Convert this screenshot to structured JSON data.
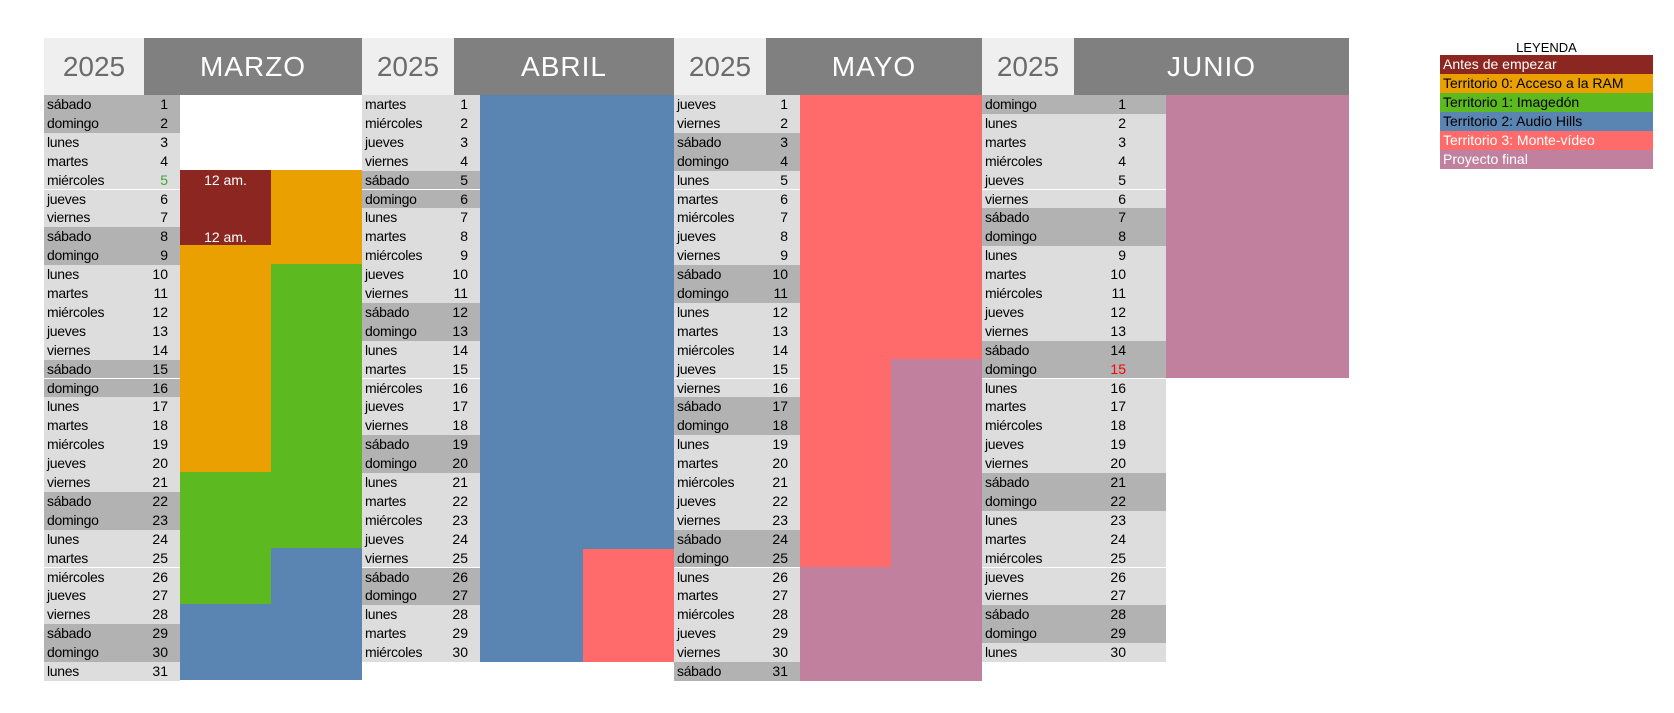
{
  "months": [
    {
      "year": "2025",
      "name": "MARZO",
      "rows": [
        [
          "sábado",
          "1"
        ],
        [
          "domingo",
          "2"
        ],
        [
          "lunes",
          "3"
        ],
        [
          "martes",
          "4"
        ],
        [
          "miércoles",
          "5"
        ],
        [
          "jueves",
          "6"
        ],
        [
          "viernes",
          "7"
        ],
        [
          "sábado",
          "8"
        ],
        [
          "domingo",
          "9"
        ],
        [
          "lunes",
          "10"
        ],
        [
          "martes",
          "11"
        ],
        [
          "miércoles",
          "12"
        ],
        [
          "jueves",
          "13"
        ],
        [
          "viernes",
          "14"
        ],
        [
          "sábado",
          "15"
        ],
        [
          "domingo",
          "16"
        ],
        [
          "lunes",
          "17"
        ],
        [
          "martes",
          "18"
        ],
        [
          "miércoles",
          "19"
        ],
        [
          "jueves",
          "20"
        ],
        [
          "viernes",
          "21"
        ],
        [
          "sábado",
          "22"
        ],
        [
          "domingo",
          "23"
        ],
        [
          "lunes",
          "24"
        ],
        [
          "martes",
          "25"
        ],
        [
          "miércoles",
          "26"
        ],
        [
          "jueves",
          "27"
        ],
        [
          "viernes",
          "28"
        ],
        [
          "sábado",
          "29"
        ],
        [
          "domingo",
          "30"
        ],
        [
          "lunes",
          "31"
        ]
      ]
    },
    {
      "year": "2025",
      "name": "ABRIL",
      "rows": [
        [
          "martes",
          "1"
        ],
        [
          "miércoles",
          "2"
        ],
        [
          "jueves",
          "3"
        ],
        [
          "viernes",
          "4"
        ],
        [
          "sábado",
          "5"
        ],
        [
          "domingo",
          "6"
        ],
        [
          "lunes",
          "7"
        ],
        [
          "martes",
          "8"
        ],
        [
          "miércoles",
          "9"
        ],
        [
          "jueves",
          "10"
        ],
        [
          "viernes",
          "11"
        ],
        [
          "sábado",
          "12"
        ],
        [
          "domingo",
          "13"
        ],
        [
          "lunes",
          "14"
        ],
        [
          "martes",
          "15"
        ],
        [
          "miércoles",
          "16"
        ],
        [
          "jueves",
          "17"
        ],
        [
          "viernes",
          "18"
        ],
        [
          "sábado",
          "19"
        ],
        [
          "domingo",
          "20"
        ],
        [
          "lunes",
          "21"
        ],
        [
          "martes",
          "22"
        ],
        [
          "miércoles",
          "23"
        ],
        [
          "jueves",
          "24"
        ],
        [
          "viernes",
          "25"
        ],
        [
          "sábado",
          "26"
        ],
        [
          "domingo",
          "27"
        ],
        [
          "lunes",
          "28"
        ],
        [
          "martes",
          "29"
        ],
        [
          "miércoles",
          "30"
        ]
      ]
    },
    {
      "year": "2025",
      "name": "MAYO",
      "rows": [
        [
          "jueves",
          "1"
        ],
        [
          "viernes",
          "2"
        ],
        [
          "sábado",
          "3"
        ],
        [
          "domingo",
          "4"
        ],
        [
          "lunes",
          "5"
        ],
        [
          "martes",
          "6"
        ],
        [
          "miércoles",
          "7"
        ],
        [
          "jueves",
          "8"
        ],
        [
          "viernes",
          "9"
        ],
        [
          "sábado",
          "10"
        ],
        [
          "domingo",
          "11"
        ],
        [
          "lunes",
          "12"
        ],
        [
          "martes",
          "13"
        ],
        [
          "miércoles",
          "14"
        ],
        [
          "jueves",
          "15"
        ],
        [
          "viernes",
          "16"
        ],
        [
          "sábado",
          "17"
        ],
        [
          "domingo",
          "18"
        ],
        [
          "lunes",
          "19"
        ],
        [
          "martes",
          "20"
        ],
        [
          "miércoles",
          "21"
        ],
        [
          "jueves",
          "22"
        ],
        [
          "viernes",
          "23"
        ],
        [
          "sábado",
          "24"
        ],
        [
          "domingo",
          "25"
        ],
        [
          "lunes",
          "26"
        ],
        [
          "martes",
          "27"
        ],
        [
          "miércoles",
          "28"
        ],
        [
          "jueves",
          "29"
        ],
        [
          "viernes",
          "30"
        ],
        [
          "sábado",
          "31"
        ]
      ]
    },
    {
      "year": "2025",
      "name": "JUNIO",
      "rows": [
        [
          "domingo",
          "1"
        ],
        [
          "lunes",
          "2"
        ],
        [
          "martes",
          "3"
        ],
        [
          "miércoles",
          "4"
        ],
        [
          "jueves",
          "5"
        ],
        [
          "viernes",
          "6"
        ],
        [
          "sábado",
          "7"
        ],
        [
          "domingo",
          "8"
        ],
        [
          "lunes",
          "9"
        ],
        [
          "martes",
          "10"
        ],
        [
          "miércoles",
          "11"
        ],
        [
          "jueves",
          "12"
        ],
        [
          "viernes",
          "13"
        ],
        [
          "sábado",
          "14"
        ],
        [
          "domingo",
          "15"
        ],
        [
          "lunes",
          "16"
        ],
        [
          "martes",
          "17"
        ],
        [
          "miércoles",
          "18"
        ],
        [
          "jueves",
          "19"
        ],
        [
          "viernes",
          "20"
        ],
        [
          "sábado",
          "21"
        ],
        [
          "domingo",
          "22"
        ],
        [
          "lunes",
          "23"
        ],
        [
          "martes",
          "24"
        ],
        [
          "miércoles",
          "25"
        ],
        [
          "jueves",
          "26"
        ],
        [
          "viernes",
          "27"
        ],
        [
          "sábado",
          "28"
        ],
        [
          "domingo",
          "29"
        ],
        [
          "lunes",
          "30"
        ]
      ]
    }
  ],
  "highlights": {
    "marzo_5": "#3aa83a",
    "junio_15": "#ff0000"
  },
  "events": {
    "marzo_5": "12 am.",
    "marzo_8": "12 am."
  },
  "legend": {
    "title": "LEYENDA",
    "items": [
      {
        "label": "Antes de empezar",
        "bg": "#8b2720",
        "fg": "#ffffff"
      },
      {
        "label": "Territorio 0: Acceso a la RAM",
        "bg": "#e9a000",
        "fg": "#000000"
      },
      {
        "label": "Territorio 1: Imagedón",
        "bg": "#5db920",
        "fg": "#000000"
      },
      {
        "label": "Territorio 2: Audio Hills",
        "bg": "#5a84b2",
        "fg": "#000000"
      },
      {
        "label": "Territorio 3: Monte-vídeo",
        "bg": "#ff6b6b",
        "fg": "#ffffff"
      },
      {
        "label": "Proyecto final",
        "bg": "#c0809e",
        "fg": "#ffffff"
      }
    ]
  },
  "colors": {
    "antes": "#8b2720",
    "t0": "#e9a000",
    "t1": "#5db920",
    "t2": "#5a84b2",
    "t3": "#ff6b6b",
    "final": "#c0809e"
  }
}
